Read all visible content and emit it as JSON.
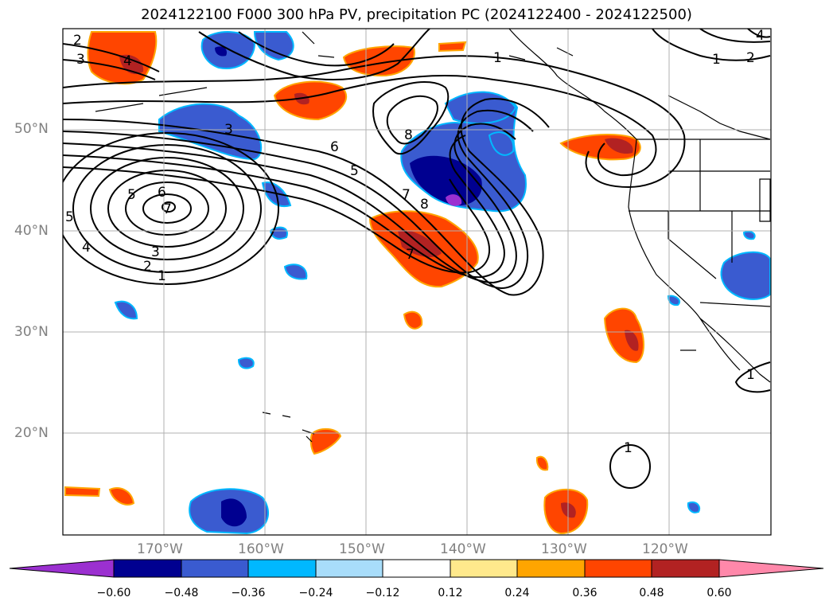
{
  "title": "2024122100 F000 300 hPa PV, precipitation PC (2024122400 - 2024122500)",
  "lat_labels": [
    "50°N",
    "40°N",
    "30°N",
    "20°N"
  ],
  "lon_labels": [
    "170°W",
    "160°W",
    "150°W",
    "140°W",
    "130°W",
    "120°W"
  ],
  "contour_labels": [
    "1",
    "2",
    "3",
    "4",
    "5",
    "6",
    "7",
    "8"
  ],
  "colorbar": {
    "ticks": [
      "−0.60",
      "−0.48",
      "−0.36",
      "−0.24",
      "−0.12",
      "0.12",
      "0.24",
      "0.36",
      "0.48",
      "0.60"
    ],
    "colors": [
      "#9b30d0",
      "#000090",
      "#3a5bd0",
      "#00b8ff",
      "#a8ddfa",
      "#ffffff",
      "#ffe98c",
      "#ffa500",
      "#ff4500",
      "#b22222",
      "#ff88aa"
    ]
  }
}
